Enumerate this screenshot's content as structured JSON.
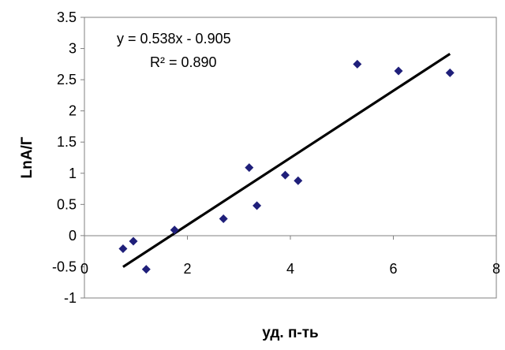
{
  "chart_data": {
    "type": "scatter",
    "xlabel": "уд. п-ть",
    "ylabel": "LnA/Г",
    "xlim": [
      0,
      8
    ],
    "ylim": [
      -1,
      3.5
    ],
    "x_ticks": [
      0,
      2,
      4,
      6,
      8
    ],
    "y_ticks": [
      -1,
      -0.5,
      0,
      0.5,
      1,
      1.5,
      2,
      2.5,
      3,
      3.5
    ],
    "x_tick_labels": [
      "0",
      "2",
      "4",
      "6",
      "8"
    ],
    "y_tick_labels": [
      "-1",
      "-0.5",
      "0",
      "0.5",
      "1",
      "1.5",
      "2",
      "2.5",
      "3",
      "3.5"
    ],
    "grid": false,
    "point_color": "#1f1f7a",
    "trendline_color": "#000000",
    "points": [
      {
        "x": 0.75,
        "y": -0.21
      },
      {
        "x": 0.95,
        "y": -0.09
      },
      {
        "x": 1.2,
        "y": -0.54
      },
      {
        "x": 1.75,
        "y": 0.09
      },
      {
        "x": 2.7,
        "y": 0.27
      },
      {
        "x": 3.2,
        "y": 1.09
      },
      {
        "x": 3.35,
        "y": 0.48
      },
      {
        "x": 3.9,
        "y": 0.97
      },
      {
        "x": 4.15,
        "y": 0.88
      },
      {
        "x": 5.3,
        "y": 2.75
      },
      {
        "x": 6.1,
        "y": 2.64
      },
      {
        "x": 7.1,
        "y": 2.61
      }
    ],
    "trendline": {
      "slope": 0.538,
      "intercept": -0.905,
      "x_start": 0.75,
      "x_end": 7.1
    },
    "annotations": [
      "y = 0.538x - 0.905",
      "R² = 0.890"
    ]
  }
}
